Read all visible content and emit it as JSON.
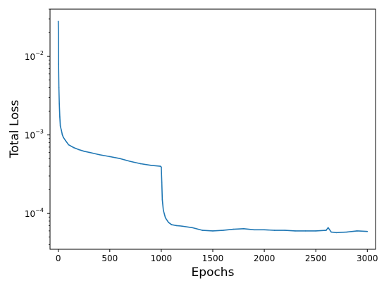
{
  "chart_data": {
    "type": "line",
    "title": "",
    "xlabel": "Epochs",
    "ylabel": "Total Loss",
    "xlim": [
      -80,
      3080
    ],
    "ylim": [
      3.5e-05,
      0.04
    ],
    "yscale": "log",
    "grid": false,
    "xticks": [
      0,
      500,
      1000,
      1500,
      2000,
      2500,
      3000
    ],
    "yticks": [
      {
        "value": 0.0001,
        "base": "10",
        "exp": "−4"
      },
      {
        "value": 0.001,
        "base": "10",
        "exp": "−3"
      },
      {
        "value": 0.01,
        "base": "10",
        "exp": "−2"
      }
    ],
    "series": [
      {
        "color": "#1f77b4",
        "x": [
          0,
          3,
          6,
          10,
          15,
          20,
          30,
          40,
          50,
          70,
          100,
          150,
          200,
          250,
          300,
          400,
          500,
          600,
          700,
          800,
          900,
          990,
          1000,
          1005,
          1010,
          1020,
          1040,
          1070,
          1100,
          1150,
          1200,
          1300,
          1400,
          1500,
          1600,
          1700,
          1800,
          1900,
          2000,
          2100,
          2200,
          2300,
          2400,
          2500,
          2600,
          2620,
          2650,
          2700,
          2800,
          2900,
          3000
        ],
        "y": [
          0.028,
          0.008,
          0.004,
          0.0025,
          0.0017,
          0.0013,
          0.00115,
          0.001,
          0.00093,
          0.00085,
          0.00075,
          0.00069,
          0.00065,
          0.00062,
          0.0006,
          0.00056,
          0.00053,
          0.0005,
          0.00046,
          0.00043,
          0.00041,
          0.0004,
          0.00039,
          0.00025,
          0.00015,
          0.00011,
          8.8e-05,
          7.7e-05,
          7.2e-05,
          7e-05,
          6.9e-05,
          6.6e-05,
          6.1e-05,
          6e-05,
          6.1e-05,
          6.3e-05,
          6.4e-05,
          6.2e-05,
          6.2e-05,
          6.1e-05,
          6.1e-05,
          6e-05,
          6e-05,
          6e-05,
          6.1e-05,
          6.6e-05,
          5.8e-05,
          5.7e-05,
          5.8e-05,
          6e-05,
          5.9e-05
        ]
      }
    ]
  }
}
